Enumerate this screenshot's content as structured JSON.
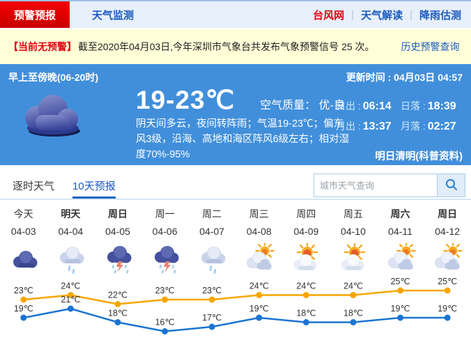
{
  "nav": {
    "primary_tabs": [
      {
        "label": "预警预报",
        "active": true
      },
      {
        "label": "天气监测",
        "active": false
      }
    ],
    "links": [
      {
        "label": "台风网",
        "highlight": true
      },
      {
        "label": "天气解读",
        "highlight": false
      },
      {
        "label": "降雨估测",
        "highlight": false
      }
    ]
  },
  "alert": {
    "badge": "【当前无预警】",
    "text": "截至2020年04月03日,今年深圳市气象台共发布气象预警信号 25 次。",
    "link": "历史预警查询"
  },
  "current": {
    "period": "早上至傍晚(06-20时)",
    "update_label": "更新时间 : ",
    "update_time": "04月03日 04:57",
    "temp_range": "19-23℃",
    "air_quality_label": "空气质量： ",
    "air_quality": "优-良",
    "description": "阴天间多云，夜间转阵雨；气温19-23℃；偏东风3级，沿海、高地和海区阵风6级左右；相对湿度70%-95%",
    "weather_icon": "overcast-cloud-icon",
    "sun_moon": [
      {
        "label": "日出 :",
        "value": "06:14"
      },
      {
        "label": "日落 :",
        "value": "18:39"
      },
      {
        "label": "月出 :",
        "value": "13:37"
      },
      {
        "label": "月落 :",
        "value": "02:27"
      }
    ],
    "tomorrow_note": "明日清明(科普资料)"
  },
  "tabs": {
    "items": [
      {
        "label": "逐时天气",
        "active": false
      },
      {
        "label": "10天预报",
        "active": true
      }
    ]
  },
  "search": {
    "placeholder": "城市天气查询",
    "button_icon": "search-icon"
  },
  "forecast": {
    "days": [
      {
        "day": "今天",
        "date": "04-03",
        "bold": false,
        "icon": "overcast-icon",
        "high": 23,
        "low": 19
      },
      {
        "day": "明天",
        "date": "04-04",
        "bold": true,
        "icon": "shower-icon",
        "high": 24,
        "low": 21
      },
      {
        "day": "周日",
        "date": "04-05",
        "bold": true,
        "icon": "thunderstorm-icon",
        "high": 22,
        "low": 18
      },
      {
        "day": "周一",
        "date": "04-06",
        "bold": false,
        "icon": "thunderstorm-icon",
        "high": 23,
        "low": 16
      },
      {
        "day": "周二",
        "date": "04-07",
        "bold": false,
        "icon": "shower-icon",
        "high": 23,
        "low": 17
      },
      {
        "day": "周三",
        "date": "04-08",
        "bold": false,
        "icon": "partly-cloudy-icon",
        "high": 24,
        "low": 19
      },
      {
        "day": "周四",
        "date": "04-09",
        "bold": false,
        "icon": "sun-cloud-icon",
        "high": 24,
        "low": 18
      },
      {
        "day": "周五",
        "date": "04-10",
        "bold": false,
        "icon": "sun-cloud-icon",
        "high": 24,
        "low": 18
      },
      {
        "day": "周六",
        "date": "04-11",
        "bold": true,
        "icon": "partly-cloudy-icon",
        "high": 25,
        "low": 19
      },
      {
        "day": "周日",
        "date": "04-12",
        "bold": true,
        "icon": "partly-cloudy-icon",
        "high": 25,
        "low": 19
      }
    ]
  },
  "chart_data": {
    "type": "line",
    "categories": [
      "今天",
      "明天",
      "周日",
      "周一",
      "周二",
      "周三",
      "周四",
      "周五",
      "周六",
      "周日"
    ],
    "x_dates": [
      "04-03",
      "04-04",
      "04-05",
      "04-06",
      "04-07",
      "04-08",
      "04-09",
      "04-10",
      "04-11",
      "04-12"
    ],
    "series": [
      {
        "name": "high_temp",
        "color": "#f7a600",
        "values": [
          23,
          24,
          22,
          23,
          23,
          24,
          24,
          24,
          25,
          25
        ]
      },
      {
        "name": "low_temp",
        "color": "#1b74d1",
        "values": [
          19,
          21,
          18,
          16,
          17,
          19,
          18,
          18,
          19,
          19
        ]
      }
    ],
    "unit": "℃",
    "ylim": [
      15,
      26
    ],
    "grid": false,
    "legend": "none",
    "data_labels": true
  },
  "colors": {
    "accent_red": "#e60012",
    "link_blue": "#1a5abf",
    "panel_blue": "#418fdb",
    "alert_bg": "#ffffd8",
    "high_line": "#f7a600",
    "low_line": "#1b74d1"
  }
}
